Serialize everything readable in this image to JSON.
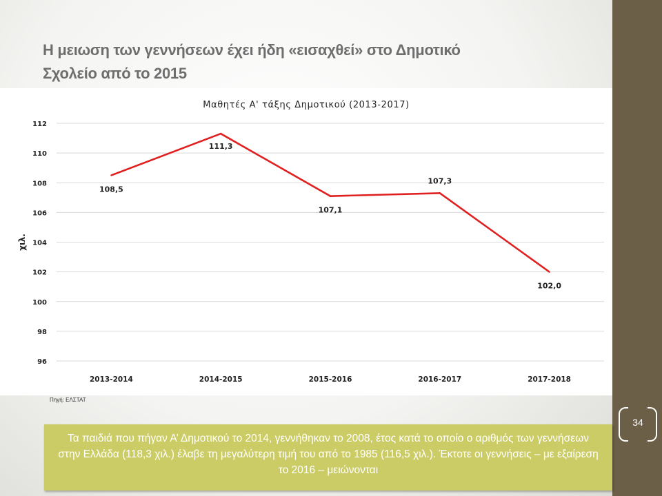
{
  "slide": {
    "title_line1": "Η μειωση των γεννήσεων έχει ήδη «εισαχθεί» στο Δημοτικό",
    "title_line2": "Σχολείο από το 2015",
    "source": "Πηγή: ΕΛΣΤΑΤ",
    "page_number": "34",
    "note": "Τα παιδιά που πήγαν Α’ Δημοτικού το 2014, γεννήθηκαν το 2008, έτος κατά το οποίο ο αριθμός των γεννήσεων στην Ελλάδα (118,3 χιλ.) έλαβε τη μεγαλύτερη τιμή του από το 1985 (116,5 χιλ.). Έκτοτε οι γεννήσεις – με εξαίρεση το 2016 – μειώνονται",
    "colors": {
      "accent_band": "#6b5f47",
      "note_bg": "#cccc66",
      "line": "#e02020"
    }
  },
  "chart_data": {
    "type": "line",
    "title": "Μαθητές Α' τάξης Δημοτικού (2013-2017)",
    "xlabel": "",
    "ylabel": "χιλ.",
    "categories": [
      "2013-2014",
      "2014-2015",
      "2015-2016",
      "2016-2017",
      "2017-2018"
    ],
    "series": [
      {
        "values": [
          108.5,
          111.3,
          107.1,
          107.3,
          102.0
        ]
      }
    ],
    "data_labels": [
      "108,5",
      "111,3",
      "107,1",
      "107,3",
      "102,0"
    ],
    "ylim": [
      96,
      112
    ],
    "yticks": [
      96,
      98,
      100,
      102,
      104,
      106,
      108,
      110,
      112
    ],
    "grid": true,
    "legend": "none"
  }
}
